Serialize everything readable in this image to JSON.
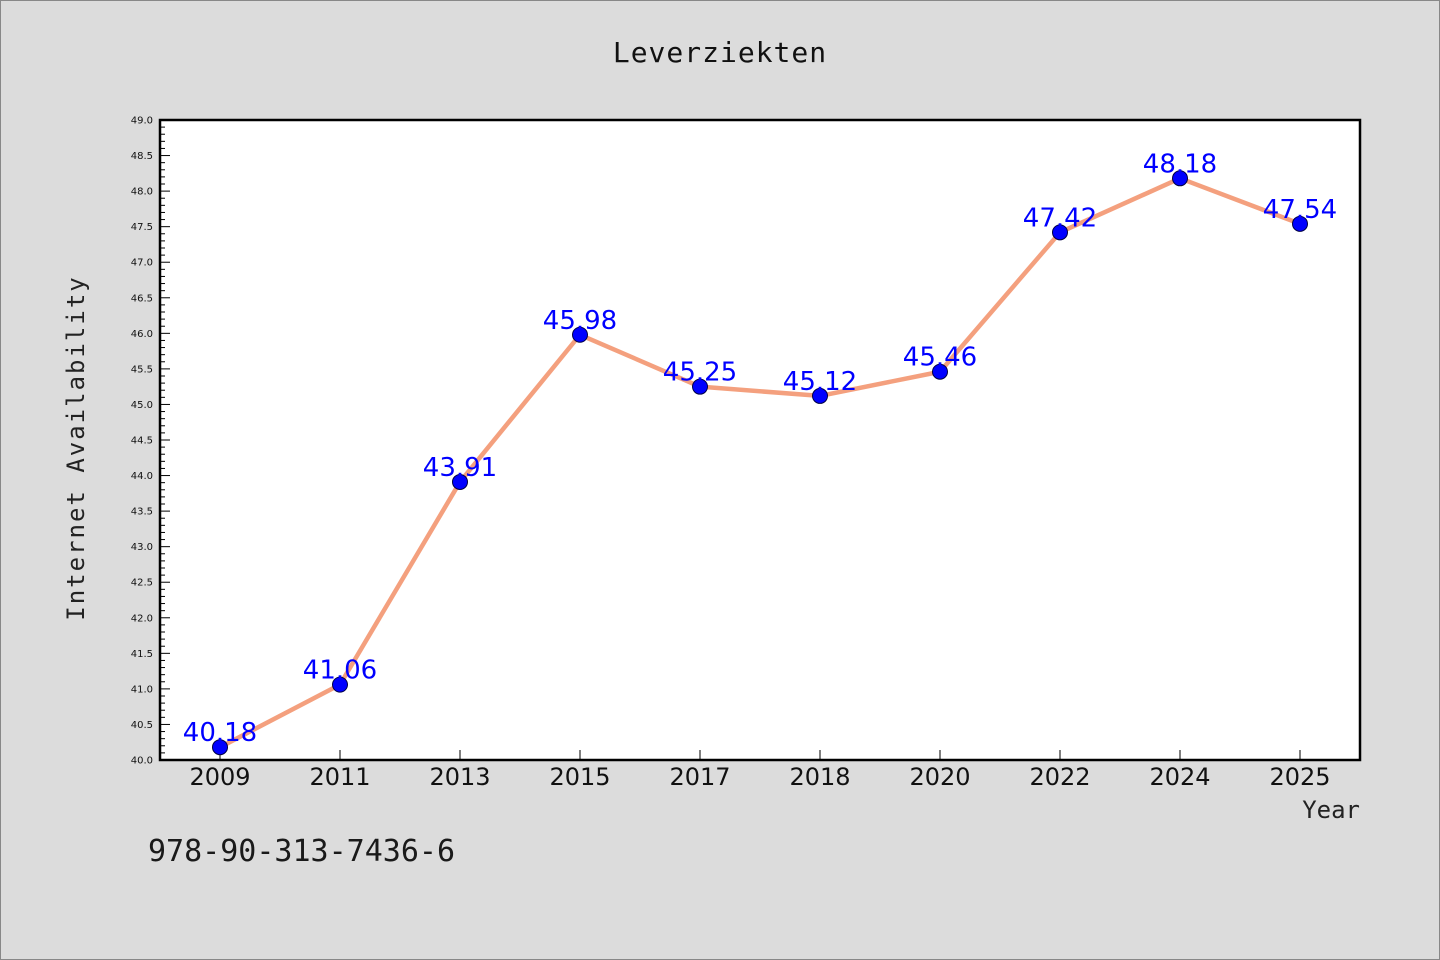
{
  "chart_data": {
    "type": "line",
    "title": "Leverziekten",
    "xlabel": "Year",
    "ylabel": "Internet Availability",
    "categories": [
      "2009",
      "2011",
      "2013",
      "2015",
      "2017",
      "2018",
      "2020",
      "2022",
      "2024",
      "2025"
    ],
    "series": [
      {
        "values": [
          40.18,
          41.06,
          43.91,
          45.98,
          45.25,
          45.12,
          45.46,
          47.42,
          48.18,
          47.54
        ]
      }
    ],
    "data_labels": [
      "40.18",
      "41.06",
      "43.91",
      "45.98",
      "45.25",
      "45.12",
      "45.46",
      "47.42",
      "48.18",
      "47.54"
    ],
    "ylim": [
      40.0,
      49.0
    ],
    "yticks": [
      "40.0",
      "40.5",
      "41.0",
      "41.5",
      "42.0",
      "42.5",
      "43.0",
      "43.5",
      "44.0",
      "44.5",
      "45.0",
      "45.5",
      "46.0",
      "46.5",
      "47.0",
      "47.5",
      "48.0",
      "48.5",
      "49.0"
    ],
    "grid": false,
    "line_color": "#f4a07e",
    "marker_color": "#0000ff",
    "label_color": "#0000ff"
  },
  "footer": {
    "isbn": "978-90-313-7436-6"
  }
}
